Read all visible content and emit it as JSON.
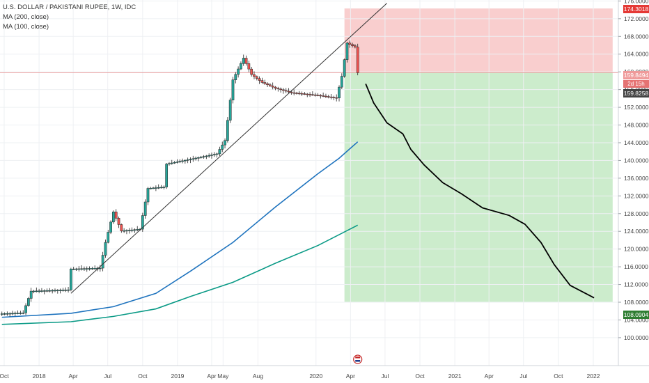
{
  "legend": {
    "symbol": "U.S. DOLLAR / PAKISTANI RUPEE, 1W, IDC",
    "ma200": "MA (200, close)",
    "ma100": "MA (100, close)"
  },
  "price_labels": {
    "target_high": "174.3018",
    "current": "159.8494",
    "countdown": "2d 15h",
    "entry": "159.8258",
    "target_low": "108.0904"
  },
  "colors": {
    "up": "#26a69a",
    "down": "#ef5350",
    "ma100": "#1e73be",
    "ma200": "#0a9a86",
    "loss_zone": "#f8c6c6",
    "profit_zone": "#c9ebc9"
  },
  "chart_data": {
    "type": "candlestick",
    "title": "U.S. DOLLAR / PAKISTANI RUPEE, 1W, IDC",
    "x_ticks": [
      "Oct",
      "2018",
      "Apr",
      "Jul",
      "Oct",
      "2019",
      "Apr",
      "May",
      "Aug",
      "2020",
      "Apr",
      "Jul",
      "Oct",
      "2021",
      "Apr",
      "Jul",
      "Oct",
      "2022"
    ],
    "y_ticks": [
      "100.0000",
      "104.0000",
      "108.0000",
      "112.0000",
      "116.0000",
      "120.0000",
      "124.0000",
      "128.0000",
      "132.0000",
      "136.0000",
      "140.0000",
      "144.0000",
      "148.0000",
      "152.0000",
      "156.0000",
      "160.0000",
      "164.0000",
      "168.0000",
      "172.0000",
      "176.0000"
    ],
    "ylim": [
      97,
      178
    ],
    "price_series": [
      {
        "date": "2017-09-25",
        "value": 105.4
      },
      {
        "date": "2017-11-20",
        "value": 105.6
      },
      {
        "date": "2017-12-11",
        "value": 110.5
      },
      {
        "date": "2018-03-19",
        "value": 110.8
      },
      {
        "date": "2018-03-26",
        "value": 115.5
      },
      {
        "date": "2018-06-11",
        "value": 115.7
      },
      {
        "date": "2018-06-25",
        "value": 121.5
      },
      {
        "date": "2018-07-16",
        "value": 128.4
      },
      {
        "date": "2018-08-06",
        "value": 124.1
      },
      {
        "date": "2018-09-24",
        "value": 124.5
      },
      {
        "date": "2018-10-15",
        "value": 133.7
      },
      {
        "date": "2018-11-26",
        "value": 134.0
      },
      {
        "date": "2018-12-03",
        "value": 139.2
      },
      {
        "date": "2019-04-15",
        "value": 141.5
      },
      {
        "date": "2019-05-06",
        "value": 144.5
      },
      {
        "date": "2019-05-27",
        "value": 158.2
      },
      {
        "date": "2019-06-24",
        "value": 163.1
      },
      {
        "date": "2019-07-15",
        "value": 159.4
      },
      {
        "date": "2019-08-12",
        "value": 157.6
      },
      {
        "date": "2019-09-16",
        "value": 156.3
      },
      {
        "date": "2019-10-28",
        "value": 155.3
      },
      {
        "date": "2020-01-06",
        "value": 154.7
      },
      {
        "date": "2020-02-24",
        "value": 154.1
      },
      {
        "date": "2020-03-09",
        "value": 159.0
      },
      {
        "date": "2020-03-23",
        "value": 166.5
      },
      {
        "date": "2020-04-13",
        "value": 165.6
      },
      {
        "date": "2020-04-20",
        "value": 159.8
      }
    ],
    "trendline": [
      {
        "date": "2018-03-26",
        "value": 110.0
      },
      {
        "date": "2020-07-06",
        "value": 175.5
      }
    ],
    "ma100": [
      {
        "date": "2017-09-25",
        "value": 104.6
      },
      {
        "date": "2018-03-26",
        "value": 105.5
      },
      {
        "date": "2018-07-16",
        "value": 107.0
      },
      {
        "date": "2018-11-05",
        "value": 110.0
      },
      {
        "date": "2019-02-04",
        "value": 115.0
      },
      {
        "date": "2019-05-27",
        "value": 121.5
      },
      {
        "date": "2019-09-16",
        "value": 129.5
      },
      {
        "date": "2020-01-06",
        "value": 137.0
      },
      {
        "date": "2020-03-02",
        "value": 140.5
      },
      {
        "date": "2020-04-20",
        "value": 144.2
      }
    ],
    "ma200": [
      {
        "date": "2017-09-25",
        "value": 103.0
      },
      {
        "date": "2018-03-26",
        "value": 103.6
      },
      {
        "date": "2018-07-16",
        "value": 104.8
      },
      {
        "date": "2018-11-05",
        "value": 106.5
      },
      {
        "date": "2019-02-04",
        "value": 109.3
      },
      {
        "date": "2019-05-27",
        "value": 112.5
      },
      {
        "date": "2019-09-16",
        "value": 116.8
      },
      {
        "date": "2020-01-06",
        "value": 120.8
      },
      {
        "date": "2020-04-20",
        "value": 125.4
      }
    ],
    "forecast_path": [
      {
        "date": "2020-05-11",
        "value": 157.3
      },
      {
        "date": "2020-06-01",
        "value": 153.0
      },
      {
        "date": "2020-07-06",
        "value": 148.5
      },
      {
        "date": "2020-08-17",
        "value": 146.0
      },
      {
        "date": "2020-09-07",
        "value": 142.5
      },
      {
        "date": "2020-10-12",
        "value": 139.0
      },
      {
        "date": "2020-11-30",
        "value": 135.0
      },
      {
        "date": "2021-01-18",
        "value": 132.5
      },
      {
        "date": "2021-03-15",
        "value": 129.3
      },
      {
        "date": "2021-05-24",
        "value": 127.6
      },
      {
        "date": "2021-07-05",
        "value": 125.6
      },
      {
        "date": "2021-08-16",
        "value": 121.5
      },
      {
        "date": "2021-09-20",
        "value": 116.5
      },
      {
        "date": "2021-11-01",
        "value": 111.8
      },
      {
        "date": "2022-01-03",
        "value": 109.0
      }
    ],
    "position": {
      "start": "2020-03-16",
      "end": "2022-02-21",
      "entry": 159.8258,
      "stop": 174.3018,
      "target": 108.0904
    },
    "grid": true,
    "legend_position": "top-left"
  }
}
